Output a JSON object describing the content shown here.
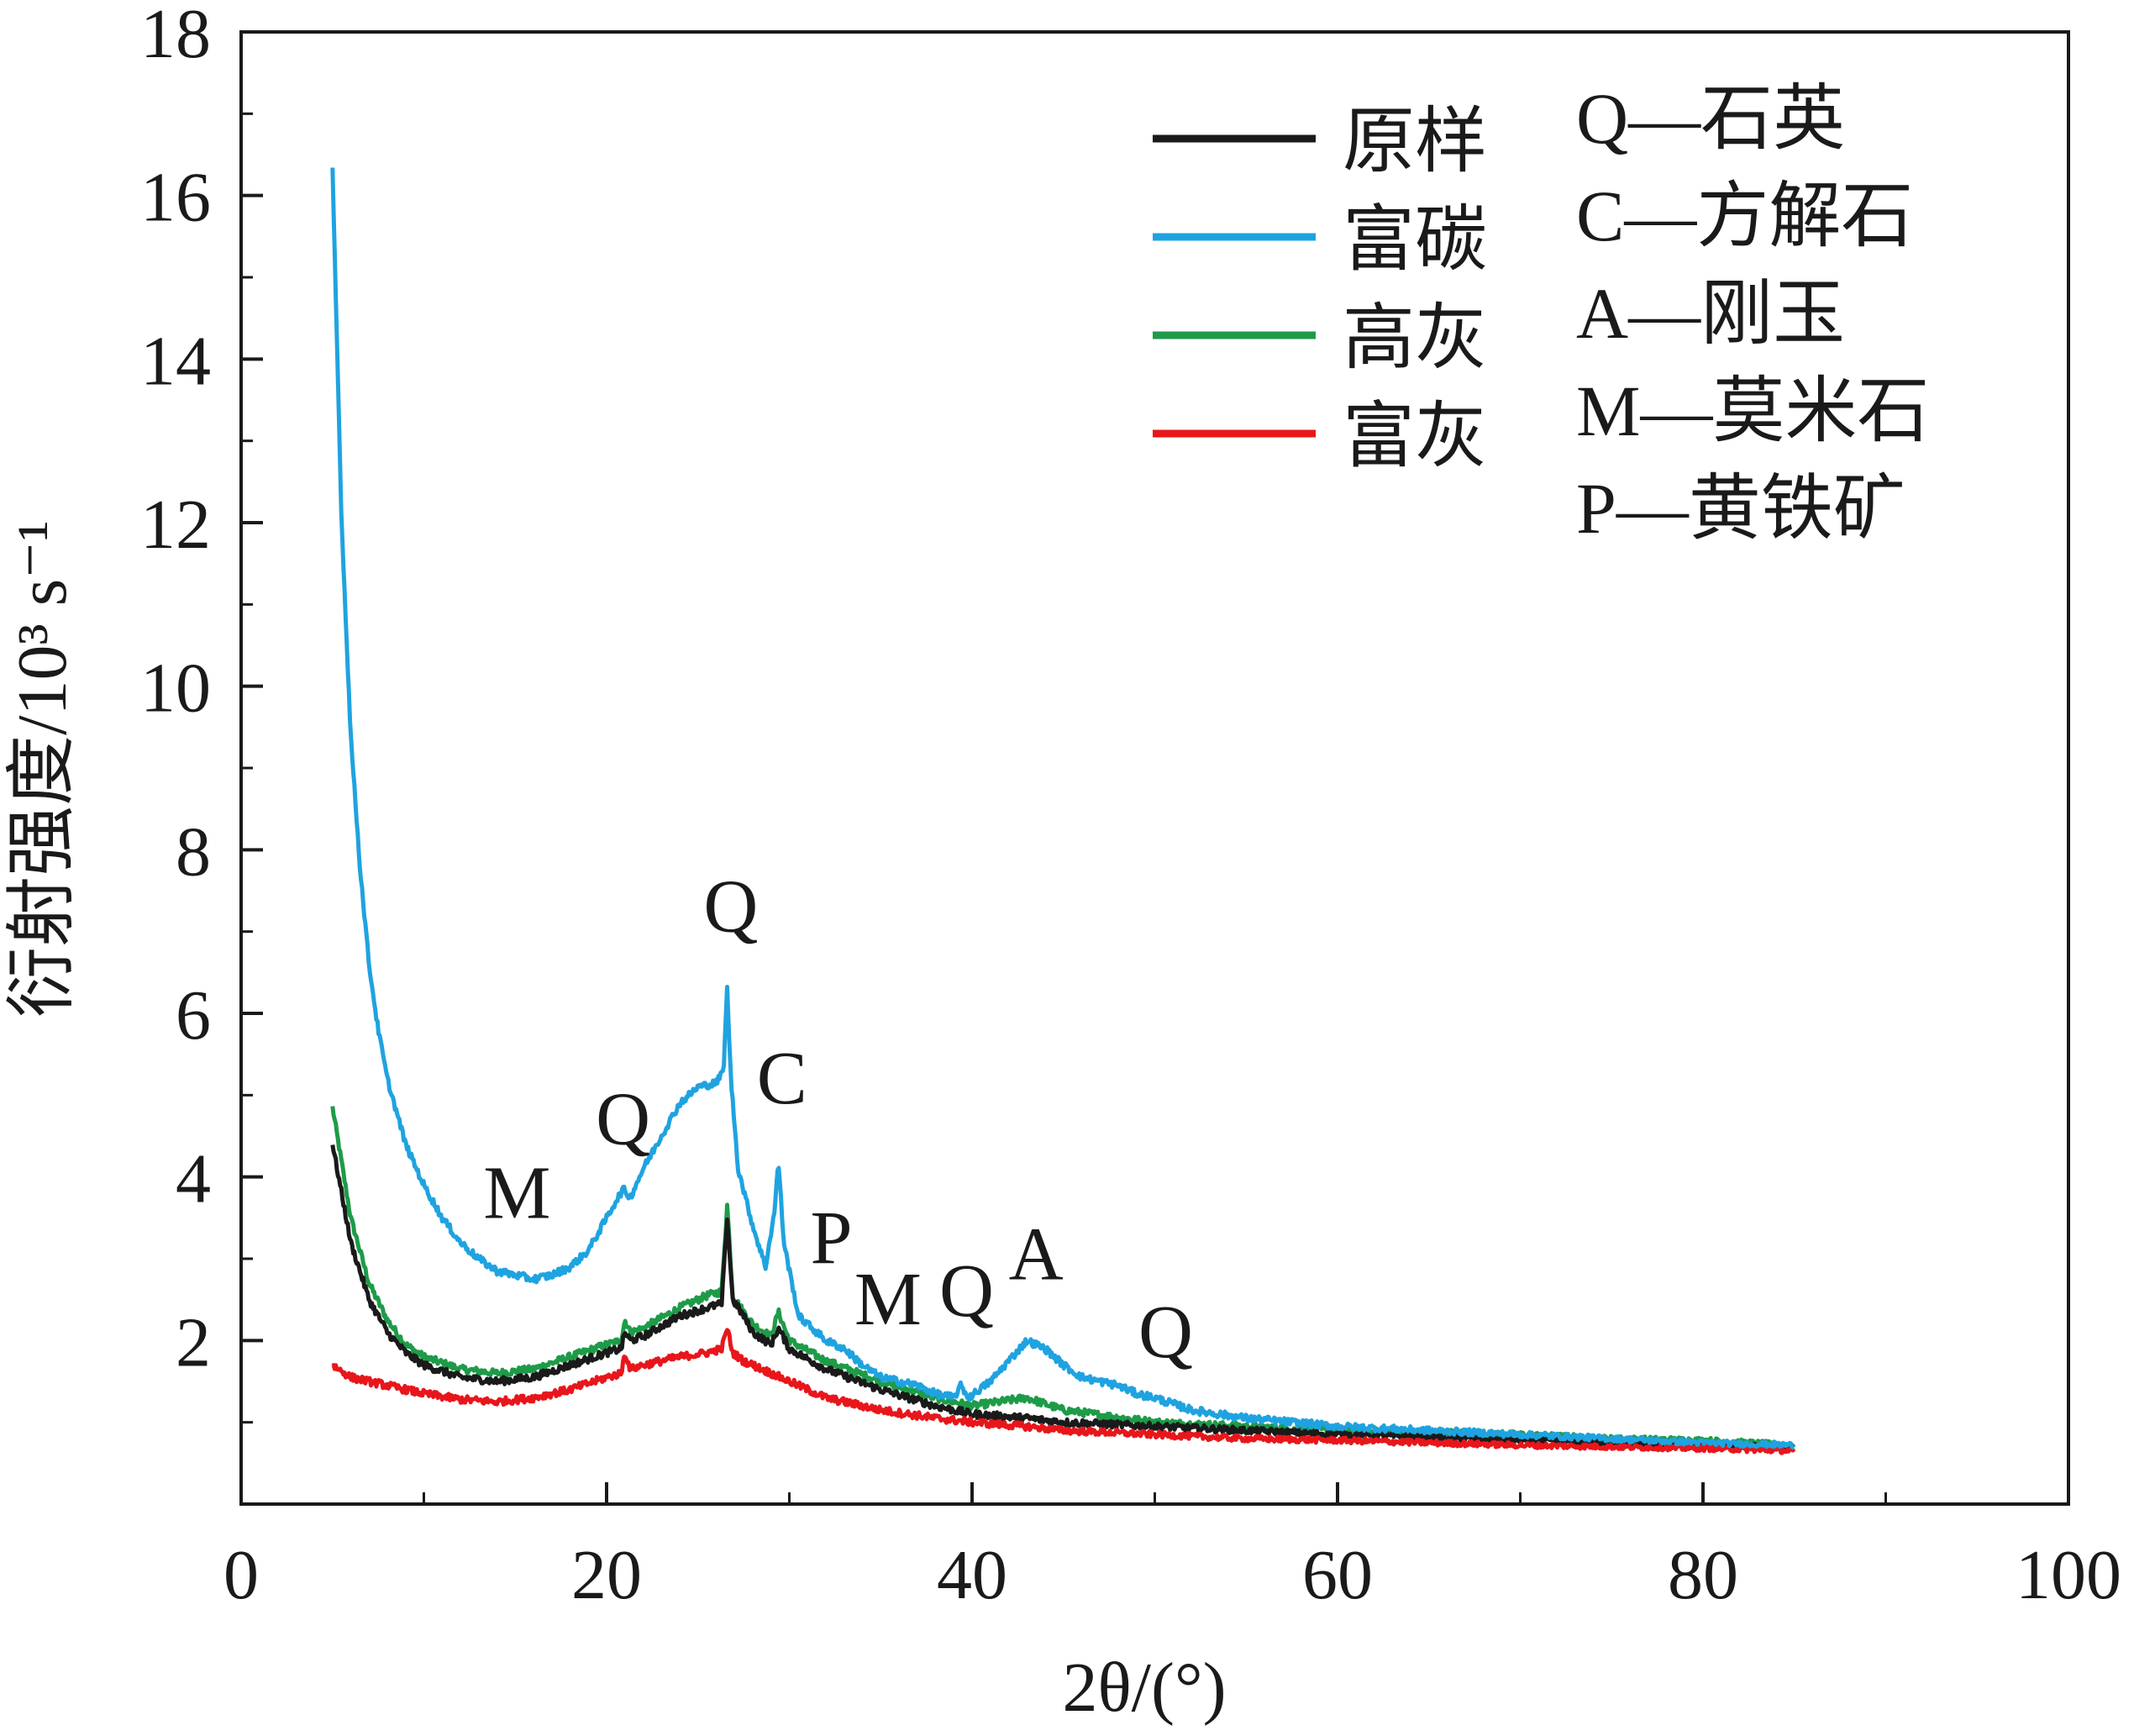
{
  "chart_data": {
    "type": "line",
    "xlabel": "2θ/(°)",
    "ylabel": "衍射强度/10³ s⁻¹",
    "xlim": [
      0,
      100
    ],
    "ylim": [
      0,
      18
    ],
    "xticks": [
      "0",
      "20",
      "40",
      "60",
      "80",
      "100"
    ],
    "yticks": [
      "2",
      "4",
      "6",
      "8",
      "10",
      "12",
      "14",
      "16",
      "18"
    ],
    "grid": false,
    "legend_position": "top-right",
    "series": [
      {
        "name": "原样",
        "color": "#1a1a1a",
        "x": [
          5,
          6,
          7,
          8,
          9,
          10,
          12,
          14,
          16,
          18,
          20,
          20.8,
          21.0,
          21.3,
          22,
          24,
          25.5,
          26.3,
          26.6,
          26.9,
          27.5,
          28,
          29,
          29.4,
          30,
          32,
          35,
          38,
          40,
          43,
          45,
          50,
          55,
          60,
          65,
          70,
          75,
          80,
          85
        ],
        "y": [
          4.4,
          3.2,
          2.5,
          2.1,
          1.85,
          1.7,
          1.55,
          1.5,
          1.55,
          1.7,
          1.85,
          1.9,
          2.1,
          2.0,
          2.05,
          2.3,
          2.4,
          2.45,
          3.5,
          2.5,
          2.3,
          2.1,
          1.95,
          2.15,
          1.9,
          1.65,
          1.4,
          1.2,
          1.1,
          1.05,
          1.0,
          0.95,
          0.9,
          0.85,
          0.82,
          0.78,
          0.75,
          0.72,
          0.7
        ]
      },
      {
        "name": "富碳",
        "color": "#1fa3e0",
        "x": [
          5,
          5.5,
          6,
          6.5,
          7,
          7.5,
          8,
          8.5,
          9,
          10,
          11,
          12,
          13,
          14,
          15,
          16,
          17,
          18,
          19,
          20,
          20.5,
          20.9,
          21.3,
          22,
          23,
          24,
          25,
          26,
          26.4,
          26.6,
          26.8,
          27.2,
          28,
          28.7,
          29.2,
          29.4,
          29.7,
          30.5,
          32,
          33,
          34,
          35,
          36,
          37,
          38,
          39,
          39.4,
          39.8,
          41,
          42,
          43,
          44,
          45,
          46,
          47,
          48,
          49,
          50,
          52,
          55,
          60,
          65,
          70,
          75,
          80,
          85
        ],
        "y": [
          16.3,
          12.0,
          9.4,
          7.8,
          6.6,
          5.8,
          5.2,
          4.8,
          4.4,
          3.9,
          3.5,
          3.2,
          3.0,
          2.85,
          2.8,
          2.75,
          2.8,
          2.9,
          3.1,
          3.5,
          3.7,
          3.85,
          3.75,
          4.1,
          4.5,
          4.9,
          5.1,
          5.15,
          5.3,
          6.3,
          5.2,
          4.1,
          3.4,
          2.9,
          3.6,
          4.2,
          3.2,
          2.3,
          2.0,
          1.9,
          1.7,
          1.55,
          1.5,
          1.45,
          1.35,
          1.3,
          1.45,
          1.3,
          1.5,
          1.75,
          2.0,
          1.9,
          1.7,
          1.55,
          1.5,
          1.45,
          1.35,
          1.3,
          1.15,
          1.05,
          0.95,
          0.9,
          0.85,
          0.8,
          0.75,
          0.72
        ]
      },
      {
        "name": "高灰",
        "color": "#1e9b48",
        "x": [
          5,
          6,
          7,
          8,
          9,
          10,
          12,
          14,
          16,
          18,
          20,
          20.8,
          21.0,
          21.3,
          22,
          24,
          25.5,
          26.3,
          26.6,
          26.9,
          27.5,
          28,
          29,
          29.4,
          30,
          32,
          35,
          38,
          40,
          43,
          45,
          50,
          55,
          60,
          65,
          70,
          75,
          80,
          85
        ],
        "y": [
          4.85,
          3.5,
          2.7,
          2.25,
          1.95,
          1.8,
          1.65,
          1.6,
          1.65,
          1.8,
          1.95,
          2.0,
          2.25,
          2.1,
          2.15,
          2.4,
          2.55,
          2.6,
          3.65,
          2.55,
          2.35,
          2.2,
          2.05,
          2.35,
          2.0,
          1.75,
          1.5,
          1.3,
          1.2,
          1.3,
          1.15,
          1.0,
          0.95,
          0.9,
          0.88,
          0.85,
          0.8,
          0.78,
          0.72
        ]
      },
      {
        "name": "富灰",
        "color": "#e8161b",
        "x": [
          5,
          6,
          8,
          10,
          12,
          14,
          16,
          18,
          20,
          20.8,
          21.0,
          21.3,
          22,
          24,
          25.5,
          26.3,
          26.6,
          26.9,
          27.5,
          28,
          29,
          30,
          32,
          35,
          38,
          40,
          43,
          45,
          50,
          55,
          60,
          65,
          70,
          75,
          80,
          85
        ],
        "y": [
          1.7,
          1.55,
          1.45,
          1.35,
          1.28,
          1.25,
          1.3,
          1.4,
          1.55,
          1.6,
          1.85,
          1.65,
          1.7,
          1.8,
          1.85,
          1.9,
          2.15,
          1.85,
          1.75,
          1.7,
          1.6,
          1.5,
          1.3,
          1.15,
          1.05,
          1.0,
          0.95,
          0.9,
          0.85,
          0.8,
          0.78,
          0.75,
          0.72,
          0.7,
          0.68,
          0.65
        ]
      }
    ],
    "annotations": [
      {
        "text": "Q",
        "x": 26.8,
        "y": 7.0
      },
      {
        "text": "C",
        "x": 29.6,
        "y": 4.9
      },
      {
        "text": "Q",
        "x": 20.9,
        "y": 4.4
      },
      {
        "text": "M",
        "x": 15.1,
        "y": 3.5
      },
      {
        "text": "P",
        "x": 32.3,
        "y": 2.95
      },
      {
        "text": "M",
        "x": 35.4,
        "y": 2.2
      },
      {
        "text": "Q",
        "x": 39.7,
        "y": 2.3
      },
      {
        "text": "A",
        "x": 43.5,
        "y": 2.75
      },
      {
        "text": "Q",
        "x": 50.6,
        "y": 1.8
      }
    ],
    "phase_key": [
      {
        "symbol": "Q",
        "text": "Q—石英"
      },
      {
        "symbol": "C",
        "text": "C—方解石"
      },
      {
        "symbol": "A",
        "text": "A—刚玉"
      },
      {
        "symbol": "M",
        "text": "M—莫米石"
      },
      {
        "symbol": "P",
        "text": "P—黄铁矿"
      }
    ]
  }
}
